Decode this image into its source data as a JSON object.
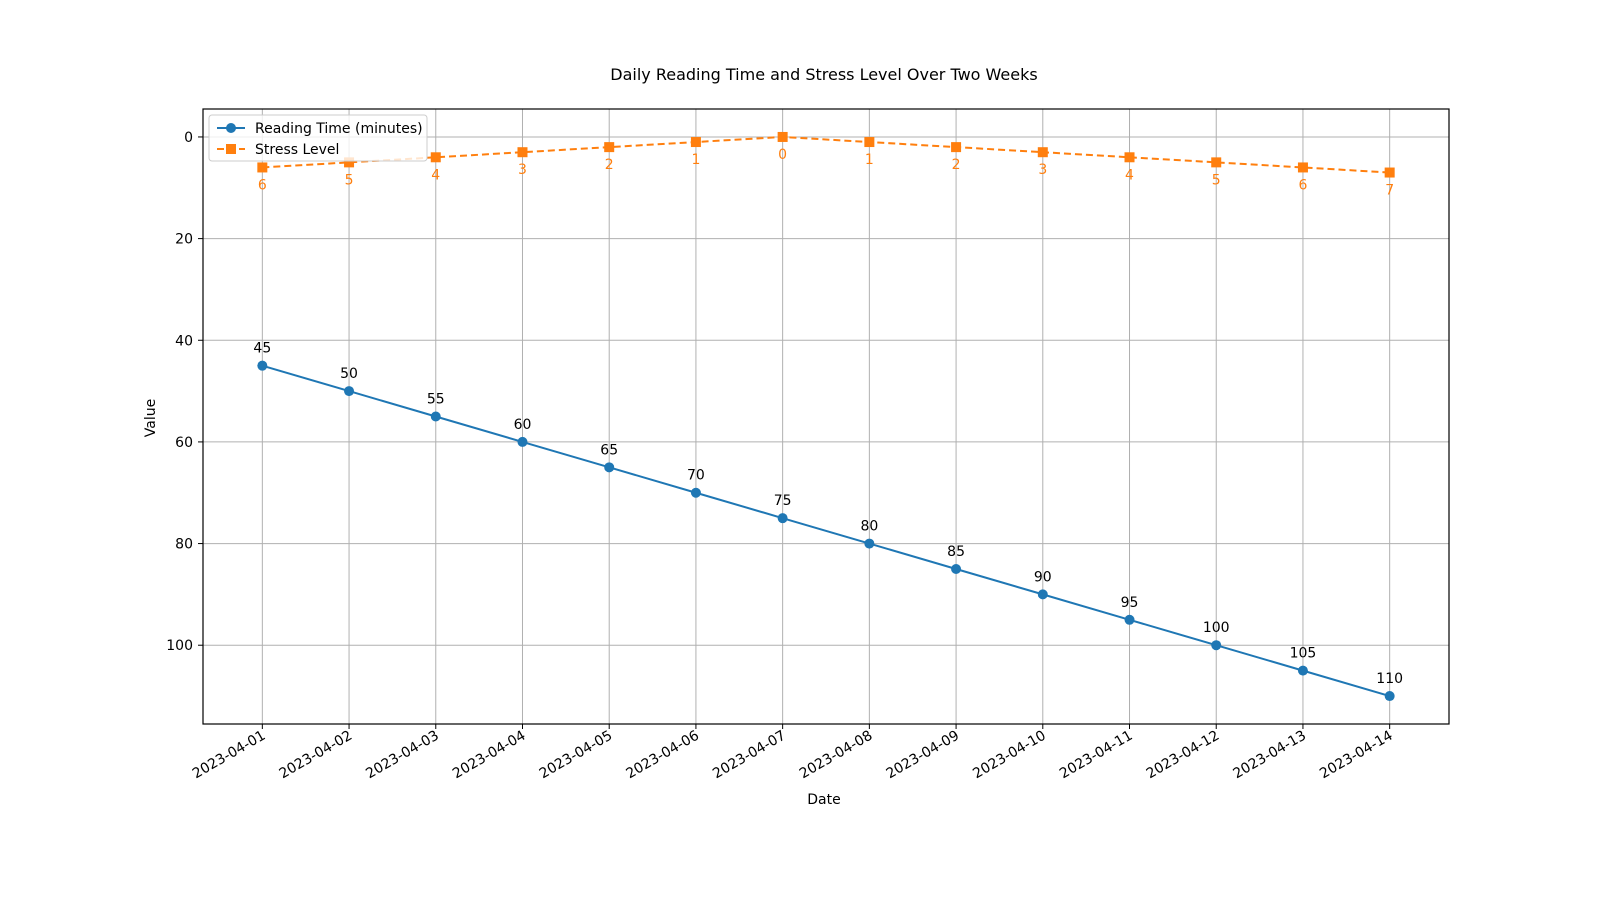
{
  "chart_data": {
    "type": "line",
    "title": "Daily Reading Time and Stress Level Over Two Weeks",
    "xlabel": "Date",
    "ylabel": "Value",
    "x": [
      "2023-04-01",
      "2023-04-02",
      "2023-04-03",
      "2023-04-04",
      "2023-04-05",
      "2023-04-06",
      "2023-04-07",
      "2023-04-08",
      "2023-04-09",
      "2023-04-10",
      "2023-04-11",
      "2023-04-12",
      "2023-04-13",
      "2023-04-14"
    ],
    "ylim": [
      115.5,
      -5.5
    ],
    "y_inverted": true,
    "yticks": [
      0,
      20,
      40,
      60,
      80,
      100
    ],
    "grid": true,
    "legend_position": "top-left",
    "series": [
      {
        "name": "Reading Time (minutes)",
        "color": "#1f77b4",
        "marker": "circle",
        "line_style": "solid",
        "values": [
          45,
          50,
          55,
          60,
          65,
          70,
          75,
          80,
          85,
          90,
          95,
          100,
          105,
          110
        ]
      },
      {
        "name": "Stress Level",
        "color": "#ff7f0e",
        "marker": "square",
        "line_style": "dashed",
        "values": [
          6,
          5,
          4,
          3,
          2,
          1,
          0,
          1,
          2,
          3,
          4,
          5,
          6,
          7
        ]
      }
    ]
  }
}
